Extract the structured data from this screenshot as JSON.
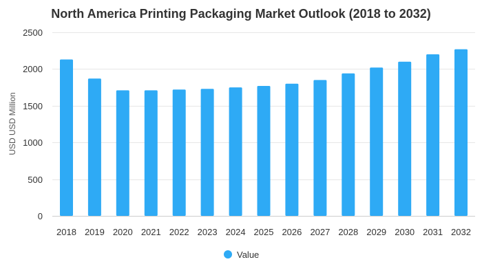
{
  "chart_data": {
    "type": "bar",
    "title": "North America Printing Packaging Market Outlook (2018 to 2032)",
    "xlabel": "",
    "ylabel": "USD USD Million",
    "ylim": [
      0,
      2500
    ],
    "yticks": [
      0,
      500,
      1000,
      1500,
      2000,
      2500
    ],
    "grid": true,
    "legend_position": "bottom-center",
    "categories": [
      "2018",
      "2019",
      "2020",
      "2021",
      "2022",
      "2023",
      "2024",
      "2025",
      "2026",
      "2027",
      "2028",
      "2029",
      "2030",
      "2031",
      "2032"
    ],
    "series": [
      {
        "name": "Value",
        "color": "#2eaaf5",
        "values": [
          2130,
          1870,
          1710,
          1710,
          1720,
          1730,
          1750,
          1770,
          1800,
          1850,
          1940,
          2020,
          2100,
          2200,
          2270
        ]
      }
    ]
  }
}
